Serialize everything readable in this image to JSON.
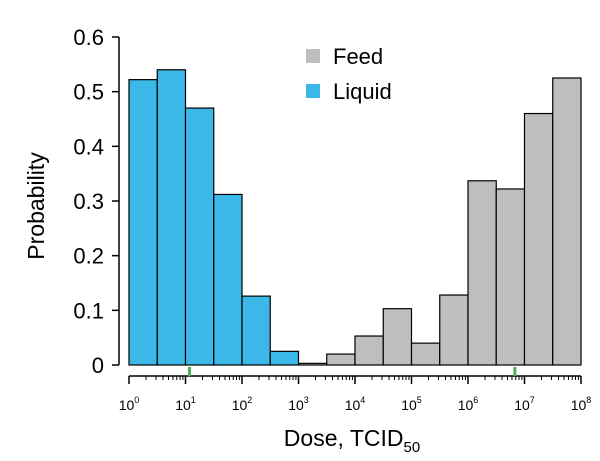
{
  "chart_data": {
    "type": "bar",
    "title": "",
    "xlabel": "Dose, TCID",
    "xlabel_subscript": "50",
    "ylabel": "Probability",
    "ylim": [
      0,
      0.6
    ],
    "yticks": [
      "0",
      "0.1",
      "0.2",
      "0.3",
      "0.4",
      "0.5",
      "0.6"
    ],
    "xscale": "log10",
    "xlim_exponent": [
      0,
      8
    ],
    "xticks": [
      {
        "base": "10",
        "exp": "0"
      },
      {
        "base": "10",
        "exp": "1"
      },
      {
        "base": "10",
        "exp": "2"
      },
      {
        "base": "10",
        "exp": "3"
      },
      {
        "base": "10",
        "exp": "4"
      },
      {
        "base": "10",
        "exp": "5"
      },
      {
        "base": "10",
        "exp": "6"
      },
      {
        "base": "10",
        "exp": "7"
      },
      {
        "base": "10",
        "exp": "8"
      }
    ],
    "legend_position": "top-center",
    "series": [
      {
        "name": "Feed",
        "color": "#bebebe",
        "bins": [
          {
            "log_from": 3.0,
            "log_to": 3.5,
            "value": 0.003
          },
          {
            "log_from": 3.5,
            "log_to": 4.0,
            "value": 0.02
          },
          {
            "log_from": 4.0,
            "log_to": 4.5,
            "value": 0.053
          },
          {
            "log_from": 4.5,
            "log_to": 5.0,
            "value": 0.103
          },
          {
            "log_from": 5.0,
            "log_to": 5.5,
            "value": 0.04
          },
          {
            "log_from": 5.5,
            "log_to": 6.0,
            "value": 0.128
          },
          {
            "log_from": 6.0,
            "log_to": 6.5,
            "value": 0.337
          },
          {
            "log_from": 6.5,
            "log_to": 7.0,
            "value": 0.322
          },
          {
            "log_from": 7.0,
            "log_to": 7.5,
            "value": 0.46
          },
          {
            "log_from": 7.5,
            "log_to": 8.0,
            "value": 0.525
          }
        ]
      },
      {
        "name": "Liquid",
        "color": "#3bb8e8",
        "bins": [
          {
            "log_from": 0.0,
            "log_to": 0.5,
            "value": 0.522
          },
          {
            "log_from": 0.5,
            "log_to": 1.0,
            "value": 0.54
          },
          {
            "log_from": 1.0,
            "log_to": 1.5,
            "value": 0.47
          },
          {
            "log_from": 1.5,
            "log_to": 2.0,
            "value": 0.312
          },
          {
            "log_from": 2.0,
            "log_to": 2.5,
            "value": 0.126
          },
          {
            "log_from": 2.5,
            "log_to": 3.0,
            "value": 0.025
          }
        ]
      }
    ],
    "markers": [
      {
        "color": "#4caf50",
        "log_value": 1.07
      },
      {
        "color": "#4caf50",
        "log_value": 6.83
      }
    ]
  }
}
